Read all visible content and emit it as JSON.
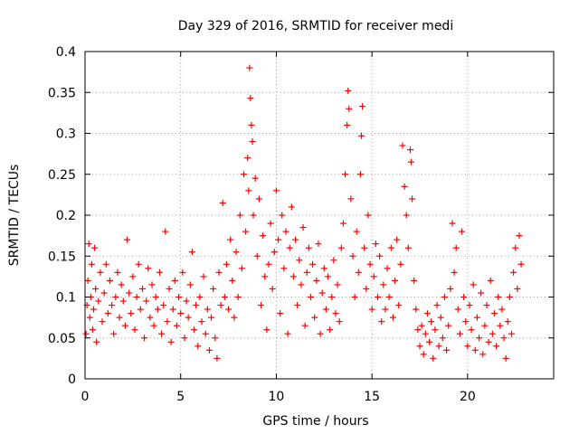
{
  "chart_data": {
    "type": "scatter",
    "title": "Day 329 of 2016, SRMTID for receiver medi",
    "xlabel": "GPS time / hours",
    "ylabel": "SRMTID / TECUs",
    "xlim": [
      0,
      24.5
    ],
    "ylim": [
      0,
      0.4
    ],
    "grid": true,
    "marker": "plus",
    "series_color": "#ff0000",
    "x_ticks": [
      {
        "value": 0,
        "label": "0"
      },
      {
        "value": 5,
        "label": "5"
      },
      {
        "value": 10,
        "label": "10"
      },
      {
        "value": 15,
        "label": "15"
      },
      {
        "value": 20,
        "label": "20"
      }
    ],
    "y_ticks": [
      {
        "value": 0,
        "label": "0"
      },
      {
        "value": 0.05,
        "label": "0.05"
      },
      {
        "value": 0.1,
        "label": "0.1"
      },
      {
        "value": 0.15,
        "label": "0.15"
      },
      {
        "value": 0.2,
        "label": "0.2"
      },
      {
        "value": 0.25,
        "label": "0.25"
      },
      {
        "value": 0.3,
        "label": "0.3"
      },
      {
        "value": 0.35,
        "label": "0.35"
      },
      {
        "value": 0.4,
        "label": "0.4"
      }
    ],
    "series": [
      {
        "name": "SRMTID",
        "points": [
          [
            0.05,
            0.055
          ],
          [
            0.1,
            0.09
          ],
          [
            0.15,
            0.12
          ],
          [
            0.2,
            0.165
          ],
          [
            0.25,
            0.075
          ],
          [
            0.3,
            0.1
          ],
          [
            0.35,
            0.14
          ],
          [
            0.4,
            0.06
          ],
          [
            0.45,
            0.085
          ],
          [
            0.5,
            0.16
          ],
          [
            0.55,
            0.11
          ],
          [
            0.6,
            0.045
          ],
          [
            0.7,
            0.095
          ],
          [
            0.8,
            0.13
          ],
          [
            0.9,
            0.07
          ],
          [
            1.0,
            0.105
          ],
          [
            1.1,
            0.14
          ],
          [
            1.2,
            0.08
          ],
          [
            1.3,
            0.12
          ],
          [
            1.4,
            0.09
          ],
          [
            1.5,
            0.055
          ],
          [
            1.6,
            0.1
          ],
          [
            1.7,
            0.13
          ],
          [
            1.8,
            0.075
          ],
          [
            1.9,
            0.115
          ],
          [
            2.0,
            0.095
          ],
          [
            2.1,
            0.065
          ],
          [
            2.2,
            0.17
          ],
          [
            2.3,
            0.105
          ],
          [
            2.4,
            0.08
          ],
          [
            2.5,
            0.125
          ],
          [
            2.6,
            0.06
          ],
          [
            2.7,
            0.1
          ],
          [
            2.8,
            0.14
          ],
          [
            2.9,
            0.085
          ],
          [
            3.0,
            0.11
          ],
          [
            3.1,
            0.05
          ],
          [
            3.2,
            0.095
          ],
          [
            3.3,
            0.135
          ],
          [
            3.4,
            0.075
          ],
          [
            3.5,
            0.115
          ],
          [
            3.6,
            0.065
          ],
          [
            3.7,
            0.1
          ],
          [
            3.8,
            0.085
          ],
          [
            3.9,
            0.13
          ],
          [
            4.0,
            0.055
          ],
          [
            4.1,
            0.09
          ],
          [
            4.2,
            0.18
          ],
          [
            4.3,
            0.07
          ],
          [
            4.4,
            0.11
          ],
          [
            4.5,
            0.045
          ],
          [
            4.6,
            0.085
          ],
          [
            4.7,
            0.12
          ],
          [
            4.8,
            0.065
          ],
          [
            4.9,
            0.1
          ],
          [
            5.0,
            0.08
          ],
          [
            5.1,
            0.13
          ],
          [
            5.2,
            0.05
          ],
          [
            5.3,
            0.095
          ],
          [
            5.4,
            0.075
          ],
          [
            5.5,
            0.115
          ],
          [
            5.6,
            0.155
          ],
          [
            5.7,
            0.06
          ],
          [
            5.8,
            0.09
          ],
          [
            5.9,
            0.04
          ],
          [
            6.0,
            0.1
          ],
          [
            6.1,
            0.07
          ],
          [
            6.2,
            0.125
          ],
          [
            6.3,
            0.055
          ],
          [
            6.4,
            0.085
          ],
          [
            6.5,
            0.035
          ],
          [
            6.6,
            0.075
          ],
          [
            6.7,
            0.11
          ],
          [
            6.8,
            0.05
          ],
          [
            6.9,
            0.025
          ],
          [
            7.0,
            0.13
          ],
          [
            7.1,
            0.09
          ],
          [
            7.2,
            0.215
          ],
          [
            7.3,
            0.1
          ],
          [
            7.4,
            0.14
          ],
          [
            7.5,
            0.085
          ],
          [
            7.6,
            0.17
          ],
          [
            7.7,
            0.12
          ],
          [
            7.8,
            0.075
          ],
          [
            7.9,
            0.155
          ],
          [
            8.0,
            0.1
          ],
          [
            8.1,
            0.2
          ],
          [
            8.2,
            0.135
          ],
          [
            8.3,
            0.25
          ],
          [
            8.4,
            0.18
          ],
          [
            8.5,
            0.27
          ],
          [
            8.55,
            0.23
          ],
          [
            8.6,
            0.38
          ],
          [
            8.65,
            0.343
          ],
          [
            8.7,
            0.31
          ],
          [
            8.75,
            0.29
          ],
          [
            8.8,
            0.2
          ],
          [
            8.9,
            0.245
          ],
          [
            9.0,
            0.15
          ],
          [
            9.1,
            0.22
          ],
          [
            9.2,
            0.09
          ],
          [
            9.3,
            0.175
          ],
          [
            9.4,
            0.125
          ],
          [
            9.5,
            0.06
          ],
          [
            9.6,
            0.14
          ],
          [
            9.7,
            0.19
          ],
          [
            9.8,
            0.11
          ],
          [
            9.9,
            0.155
          ],
          [
            10.0,
            0.23
          ],
          [
            10.1,
            0.17
          ],
          [
            10.2,
            0.08
          ],
          [
            10.3,
            0.2
          ],
          [
            10.4,
            0.135
          ],
          [
            10.5,
            0.18
          ],
          [
            10.6,
            0.055
          ],
          [
            10.7,
            0.16
          ],
          [
            10.8,
            0.21
          ],
          [
            10.9,
            0.125
          ],
          [
            11.0,
            0.17
          ],
          [
            11.1,
            0.09
          ],
          [
            11.2,
            0.145
          ],
          [
            11.3,
            0.115
          ],
          [
            11.4,
            0.185
          ],
          [
            11.5,
            0.065
          ],
          [
            11.6,
            0.13
          ],
          [
            11.7,
            0.16
          ],
          [
            11.8,
            0.1
          ],
          [
            11.9,
            0.14
          ],
          [
            12.0,
            0.075
          ],
          [
            12.1,
            0.12
          ],
          [
            12.2,
            0.165
          ],
          [
            12.3,
            0.055
          ],
          [
            12.4,
            0.105
          ],
          [
            12.5,
            0.135
          ],
          [
            12.6,
            0.085
          ],
          [
            12.7,
            0.125
          ],
          [
            12.8,
            0.06
          ],
          [
            12.9,
            0.1
          ],
          [
            13.0,
            0.145
          ],
          [
            13.1,
            0.08
          ],
          [
            13.2,
            0.115
          ],
          [
            13.3,
            0.07
          ],
          [
            13.4,
            0.16
          ],
          [
            13.5,
            0.19
          ],
          [
            13.6,
            0.25
          ],
          [
            13.7,
            0.31
          ],
          [
            13.75,
            0.352
          ],
          [
            13.8,
            0.33
          ],
          [
            13.9,
            0.22
          ],
          [
            14.0,
            0.15
          ],
          [
            14.1,
            0.1
          ],
          [
            14.2,
            0.18
          ],
          [
            14.3,
            0.13
          ],
          [
            14.4,
            0.25
          ],
          [
            14.45,
            0.297
          ],
          [
            14.5,
            0.333
          ],
          [
            14.6,
            0.16
          ],
          [
            14.7,
            0.11
          ],
          [
            14.8,
            0.2
          ],
          [
            14.9,
            0.14
          ],
          [
            15.0,
            0.085
          ],
          [
            15.1,
            0.125
          ],
          [
            15.2,
            0.165
          ],
          [
            15.3,
            0.1
          ],
          [
            15.4,
            0.15
          ],
          [
            15.5,
            0.07
          ],
          [
            15.6,
            0.115
          ],
          [
            15.7,
            0.085
          ],
          [
            15.8,
            0.135
          ],
          [
            15.9,
            0.1
          ],
          [
            16.0,
            0.16
          ],
          [
            16.1,
            0.075
          ],
          [
            16.2,
            0.12
          ],
          [
            16.3,
            0.17
          ],
          [
            16.4,
            0.09
          ],
          [
            16.5,
            0.14
          ],
          [
            16.6,
            0.285
          ],
          [
            16.7,
            0.235
          ],
          [
            16.8,
            0.2
          ],
          [
            16.9,
            0.16
          ],
          [
            17.0,
            0.28
          ],
          [
            17.05,
            0.265
          ],
          [
            17.1,
            0.22
          ],
          [
            17.2,
            0.12
          ],
          [
            17.3,
            0.085
          ],
          [
            17.4,
            0.06
          ],
          [
            17.5,
            0.04
          ],
          [
            17.6,
            0.065
          ],
          [
            17.7,
            0.03
          ],
          [
            17.8,
            0.055
          ],
          [
            17.9,
            0.08
          ],
          [
            18.0,
            0.045
          ],
          [
            18.1,
            0.07
          ],
          [
            18.2,
            0.025
          ],
          [
            18.3,
            0.06
          ],
          [
            18.4,
            0.09
          ],
          [
            18.5,
            0.04
          ],
          [
            18.6,
            0.075
          ],
          [
            18.7,
            0.05
          ],
          [
            18.8,
            0.1
          ],
          [
            18.9,
            0.035
          ],
          [
            19.0,
            0.065
          ],
          [
            19.1,
            0.11
          ],
          [
            19.2,
            0.19
          ],
          [
            19.3,
            0.13
          ],
          [
            19.4,
            0.16
          ],
          [
            19.5,
            0.085
          ],
          [
            19.6,
            0.055
          ],
          [
            19.7,
            0.18
          ],
          [
            19.8,
            0.1
          ],
          [
            19.9,
            0.07
          ],
          [
            20.0,
            0.04
          ],
          [
            20.1,
            0.09
          ],
          [
            20.2,
            0.06
          ],
          [
            20.3,
            0.115
          ],
          [
            20.4,
            0.035
          ],
          [
            20.5,
            0.075
          ],
          [
            20.6,
            0.05
          ],
          [
            20.7,
            0.105
          ],
          [
            20.8,
            0.03
          ],
          [
            20.9,
            0.065
          ],
          [
            21.0,
            0.09
          ],
          [
            21.1,
            0.045
          ],
          [
            21.2,
            0.12
          ],
          [
            21.3,
            0.055
          ],
          [
            21.4,
            0.08
          ],
          [
            21.5,
            0.04
          ],
          [
            21.6,
            0.1
          ],
          [
            21.7,
            0.065
          ],
          [
            21.8,
            0.085
          ],
          [
            21.9,
            0.05
          ],
          [
            22.0,
            0.025
          ],
          [
            22.1,
            0.07
          ],
          [
            22.2,
            0.1
          ],
          [
            22.3,
            0.055
          ],
          [
            22.4,
            0.13
          ],
          [
            22.5,
            0.16
          ],
          [
            22.6,
            0.11
          ],
          [
            22.7,
            0.175
          ],
          [
            22.8,
            0.14
          ]
        ]
      }
    ]
  }
}
